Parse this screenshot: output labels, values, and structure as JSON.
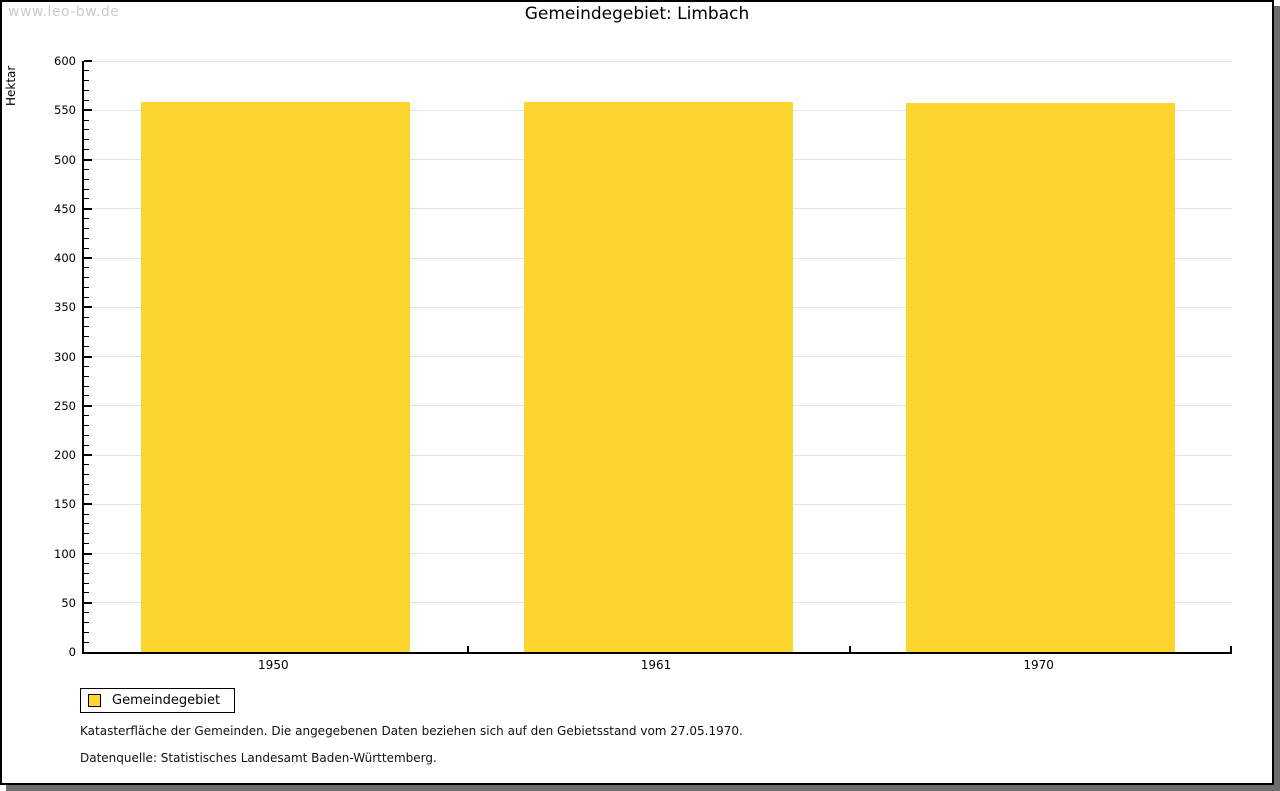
{
  "watermark": "www.leo-bw.de",
  "chart_data": {
    "type": "bar",
    "title": "Gemeindegebiet: Limbach",
    "xlabel": "",
    "ylabel": "Hektar",
    "categories": [
      "1950",
      "1961",
      "1970"
    ],
    "series": [
      {
        "name": "Gemeindegebiet",
        "values": [
          558,
          558,
          557
        ]
      }
    ],
    "ylim": [
      0,
      600
    ],
    "y_major_step": 50,
    "y_minor_step": 10,
    "grid": "horizontal-major-only",
    "legend_position": "bottom-left",
    "bar_color": "#fcd52f"
  },
  "legend": {
    "items": [
      {
        "label": "Gemeindegebiet",
        "color": "#fcd52f"
      }
    ]
  },
  "footnotes": [
    "Katasterfläche der Gemeinden. Die angegebenen Daten beziehen sich auf den Gebietsstand vom 27.05.1970.",
    "Datenquelle: Statistisches Landesamt Baden-Württemberg."
  ],
  "colors": {
    "bar": "#fcd52f",
    "gridline": "#e3e3e3",
    "axis": "#000000",
    "watermark": "#cbcbcb",
    "frame_shadow": "#6e6e6e",
    "background": "#ffffff"
  }
}
